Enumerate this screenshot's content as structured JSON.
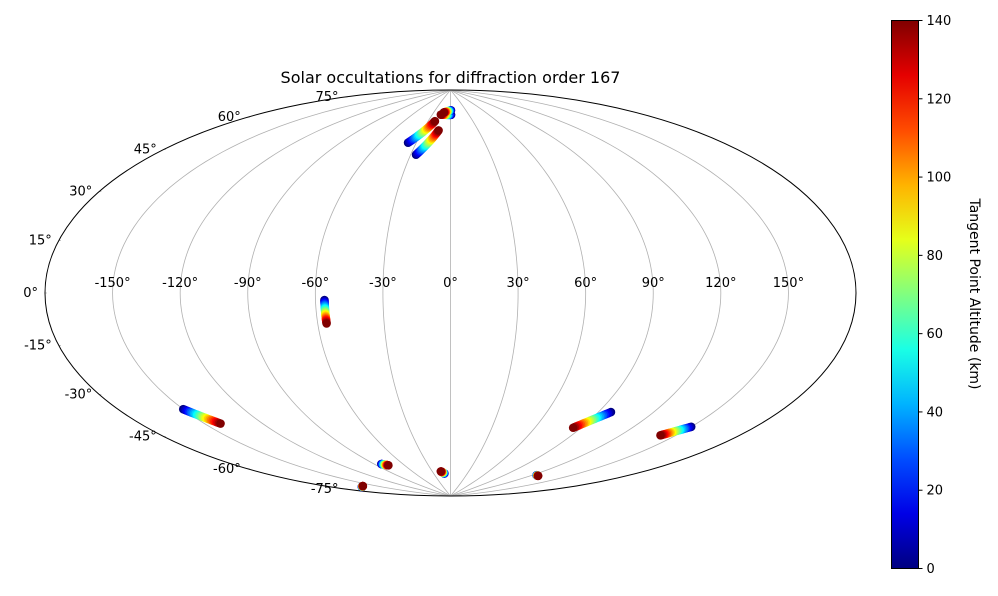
{
  "chart_data": {
    "type": "scatter",
    "projection": "aitoff",
    "title": "Solar occultations for diffraction order 167",
    "grid": true,
    "x_ticks": [
      {
        "value": -150,
        "label": "-150°"
      },
      {
        "value": -120,
        "label": "-120°"
      },
      {
        "value": -90,
        "label": "-90°"
      },
      {
        "value": -60,
        "label": "-60°"
      },
      {
        "value": -30,
        "label": "-30°"
      },
      {
        "value": 0,
        "label": "0°"
      },
      {
        "value": 30,
        "label": "30°"
      },
      {
        "value": 60,
        "label": "60°"
      },
      {
        "value": 90,
        "label": "90°"
      },
      {
        "value": 120,
        "label": "120°"
      },
      {
        "value": 150,
        "label": "150°"
      }
    ],
    "y_ticks": [
      {
        "value": 75,
        "label": "75°"
      },
      {
        "value": 60,
        "label": "60°"
      },
      {
        "value": 45,
        "label": "45°"
      },
      {
        "value": 30,
        "label": "30°"
      },
      {
        "value": 15,
        "label": "15°"
      },
      {
        "value": 0,
        "label": "0°"
      },
      {
        "value": -15,
        "label": "-15°"
      },
      {
        "value": -30,
        "label": "-30°"
      },
      {
        "value": -45,
        "label": "-45°"
      },
      {
        "value": -60,
        "label": "-60°"
      },
      {
        "value": -75,
        "label": "-75°"
      }
    ],
    "colorbar": {
      "label": "Tangent Point Altitude (km)",
      "colormap": "jet",
      "min": 0,
      "max": 140,
      "ticks": [
        {
          "value": 0,
          "label": "0"
        },
        {
          "value": 20,
          "label": "20"
        },
        {
          "value": 40,
          "label": "40"
        },
        {
          "value": 60,
          "label": "60"
        },
        {
          "value": 80,
          "label": "80"
        },
        {
          "value": 100,
          "label": "100"
        },
        {
          "value": 120,
          "label": "120"
        },
        {
          "value": 140,
          "label": "140"
        }
      ]
    },
    "occultations": [
      {
        "start": {
          "lon": -37,
          "lat": 66,
          "alt": 0
        },
        "end": {
          "lon": -21,
          "lat": 76,
          "alt": 140
        }
      },
      {
        "start": {
          "lon": -26,
          "lat": 61,
          "alt": 0
        },
        "end": {
          "lon": -13,
          "lat": 72,
          "alt": 140
        }
      },
      {
        "start": {
          "lon": 1,
          "lat": 79,
          "alt": 0
        },
        "end": {
          "lon": -16,
          "lat": 79,
          "alt": 140
        }
      },
      {
        "start": {
          "lon": 1,
          "lat": 81,
          "alt": 0
        },
        "end": {
          "lon": -12,
          "lat": 80,
          "alt": 140
        }
      },
      {
        "start": {
          "lon": -56,
          "lat": -3,
          "alt": 0
        },
        "end": {
          "lon": -56,
          "lat": -13,
          "alt": 140
        }
      },
      {
        "start": {
          "lon": -150,
          "lat": -40,
          "alt": 0
        },
        "end": {
          "lon": -142,
          "lat": -47,
          "alt": 140
        }
      },
      {
        "start": {
          "lon": 97,
          "lat": -48,
          "alt": 0
        },
        "end": {
          "lon": 85,
          "lat": -56,
          "alt": 140
        }
      },
      {
        "start": {
          "lon": 150,
          "lat": -47,
          "alt": 0
        },
        "end": {
          "lon": 142,
          "lat": -52,
          "alt": 140
        }
      },
      {
        "start": {
          "lon": -83,
          "lat": -73,
          "alt": 0
        },
        "end": {
          "lon": -78,
          "lat": -74,
          "alt": 140
        }
      },
      {
        "start": {
          "lon": -11,
          "lat": -80,
          "alt": 0
        },
        "end": {
          "lon": -16,
          "lat": -79,
          "alt": 140
        }
      },
      {
        "start": {
          "lon": 124,
          "lat": -75,
          "alt": 0
        },
        "end": {
          "lon": 127,
          "lat": -75,
          "alt": 140
        }
      },
      {
        "start": {
          "lon": 196,
          "lat": -77,
          "alt": 0
        },
        "end": {
          "lon": 200,
          "lat": -77,
          "alt": 140
        }
      }
    ]
  }
}
